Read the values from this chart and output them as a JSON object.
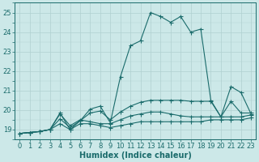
{
  "xlabel": "Humidex (Indice chaleur)",
  "ylabel": "",
  "xlim": [
    -0.5,
    23.5
  ],
  "ylim": [
    18.5,
    25.5
  ],
  "background_color": "#cce8e8",
  "line_color": "#1a6b6b",
  "grid_color": "#b0d0d0",
  "series": [
    [
      18.8,
      18.85,
      18.9,
      19.0,
      19.85,
      19.0,
      19.45,
      20.05,
      20.2,
      19.35,
      21.7,
      23.3,
      23.55,
      25.0,
      24.8,
      24.5,
      24.8,
      24.0,
      24.15,
      20.5,
      19.65,
      21.2,
      20.9,
      19.8
    ],
    [
      18.8,
      18.85,
      18.9,
      19.0,
      19.55,
      19.1,
      19.45,
      19.85,
      19.95,
      19.5,
      19.9,
      20.2,
      20.4,
      20.5,
      20.5,
      20.5,
      20.5,
      20.45,
      20.45,
      20.45,
      19.65,
      20.45,
      19.85,
      19.85
    ],
    [
      18.8,
      18.85,
      18.9,
      19.0,
      19.8,
      19.2,
      19.5,
      19.4,
      19.3,
      19.3,
      19.5,
      19.7,
      19.8,
      19.9,
      19.9,
      19.8,
      19.7,
      19.65,
      19.65,
      19.65,
      19.65,
      19.65,
      19.65,
      19.75
    ],
    [
      18.8,
      18.85,
      18.9,
      19.0,
      19.3,
      19.0,
      19.3,
      19.3,
      19.2,
      19.1,
      19.2,
      19.3,
      19.4,
      19.4,
      19.4,
      19.4,
      19.4,
      19.4,
      19.4,
      19.5,
      19.5,
      19.5,
      19.5,
      19.6
    ]
  ],
  "xticks": [
    0,
    1,
    2,
    3,
    4,
    5,
    6,
    7,
    8,
    9,
    10,
    11,
    12,
    13,
    14,
    15,
    16,
    17,
    18,
    19,
    20,
    21,
    22,
    23
  ],
  "yticks": [
    19,
    20,
    21,
    22,
    23,
    24,
    25
  ],
  "tick_fontsize": 6,
  "label_fontsize": 7,
  "markersize": 2.0,
  "linewidth": 0.8
}
